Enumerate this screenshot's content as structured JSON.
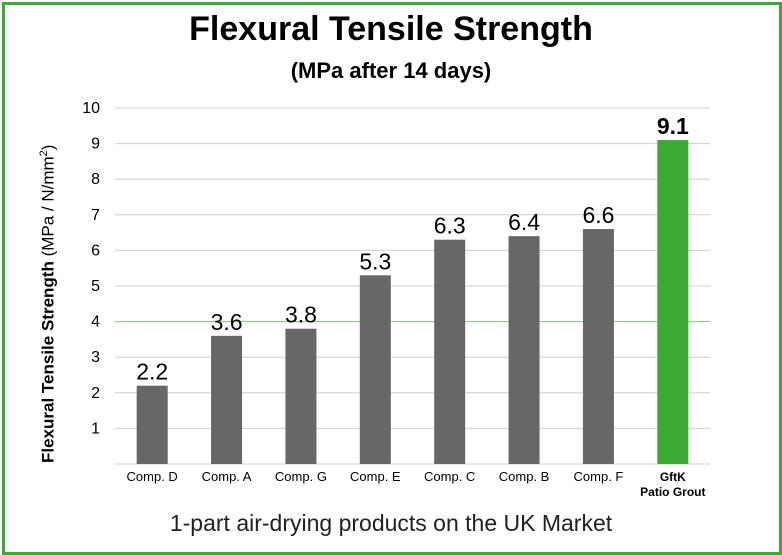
{
  "chart_data": {
    "type": "bar",
    "title": "Flexural Tensile Strength",
    "subtitle": "(MPa after 14 days)",
    "ylabel_bold": "Flexural Tensile Strength",
    "ylabel_unit_prefix": "(MPa / N/mm",
    "ylabel_unit_sup": "2",
    "ylabel_unit_suffix": ")",
    "categories": [
      [
        "Comp. D"
      ],
      [
        "Comp. A"
      ],
      [
        "Comp. G"
      ],
      [
        "Comp. E"
      ],
      [
        "Comp. C"
      ],
      [
        "Comp. B"
      ],
      [
        "Comp. F"
      ],
      [
        "GftK",
        "Patio Grout"
      ]
    ],
    "values": [
      2.2,
      3.6,
      3.8,
      5.3,
      6.3,
      6.4,
      6.6,
      9.1
    ],
    "value_labels": [
      "2.2",
      "3.6",
      "3.8",
      "5.3",
      "6.3",
      "6.4",
      "6.6",
      "9.1"
    ],
    "highlight_index": 7,
    "yticks": [
      1,
      2,
      3,
      4,
      5,
      6,
      7,
      8,
      9,
      10
    ],
    "ylim": [
      0,
      10
    ],
    "grid": true,
    "colors": {
      "bar": "#666865",
      "highlight": "#3aaa35",
      "grid": "#cfcfcf",
      "highlight_grid": "#7cc576",
      "border": "#3aaa35"
    }
  },
  "footer": "1-part air-drying products on the UK Market"
}
